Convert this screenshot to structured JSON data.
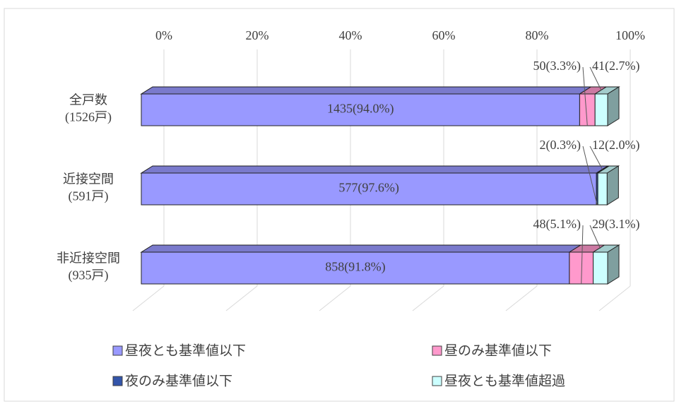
{
  "chart_data": {
    "type": "bar",
    "orientation": "horizontal",
    "stacked": true,
    "categories": [
      "全戸数\n(1526戸)",
      "近接空間\n(591戸)",
      "非近接空間\n(935戸)"
    ],
    "series": [
      {
        "name": "昼夜とも基準値以下",
        "color": "#9999ff",
        "values": [
          94.0,
          97.6,
          91.8
        ],
        "value_labels": [
          "1435(94.0%)",
          "577(97.6%)",
          "858(91.8%)"
        ]
      },
      {
        "name": "昼のみ基準値以下",
        "color": "#ff99cc",
        "values": [
          3.3,
          null,
          5.1
        ],
        "value_labels": [
          "50(3.3%)",
          null,
          "48(5.1%)"
        ]
      },
      {
        "name": "夜のみ基準値以下",
        "color": "#3355aa",
        "values": [
          null,
          0.3,
          null
        ],
        "value_labels": [
          null,
          "2(0.3%)",
          null
        ]
      },
      {
        "name": "昼夜とも基準値超過",
        "color": "#ccffff",
        "values": [
          2.7,
          2.0,
          3.1
        ],
        "value_labels": [
          "41(2.7%)",
          "12(2.0%)",
          "29(3.1%)"
        ]
      }
    ],
    "xlim": [
      0,
      100
    ],
    "xticks": [
      {
        "value": 0,
        "label": "0%"
      },
      {
        "value": 20,
        "label": "20%"
      },
      {
        "value": 40,
        "label": "40%"
      },
      {
        "value": 60,
        "label": "60%"
      },
      {
        "value": 80,
        "label": "80%"
      },
      {
        "value": 100,
        "label": "100%"
      }
    ],
    "grid": true
  }
}
